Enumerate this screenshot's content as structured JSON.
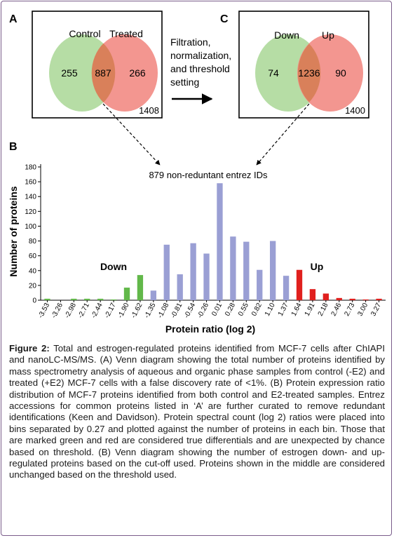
{
  "panel_a": {
    "letter": "A",
    "left_label": "Control",
    "right_label": "Treated",
    "left_only": "255",
    "overlap": "887",
    "right_only": "266",
    "total": "1408"
  },
  "arrow_text": [
    "Filtration,",
    "normalization,",
    "and threshold",
    "setting"
  ],
  "panel_c": {
    "letter": "C",
    "left_label": "Down",
    "right_label": "Up",
    "left_only": "74",
    "overlap": "1236",
    "right_only": "90",
    "total": "1400"
  },
  "panel_b_letter": "B",
  "annotation": "879 non-reduntant entrez IDs",
  "down_label": "Down",
  "up_label": "Up",
  "colors": {
    "green": "#62b84a",
    "blue": "#9a9fd4",
    "red": "#e0201e",
    "venn_green": "#b2dba0",
    "venn_red": "#f2908a",
    "venn_overlap": "#d9805a"
  },
  "chart_data": {
    "type": "bar",
    "xlabel": "Protein ratio (log 2)",
    "ylabel": "Number of proteins",
    "ylim": [
      0,
      180
    ],
    "yticks": [
      0,
      20,
      40,
      60,
      80,
      100,
      120,
      140,
      160,
      180
    ],
    "categories": [
      "-3.53",
      "-3.26",
      "-2.98",
      "-2.71",
      "-2.44",
      "-2.17",
      "-1.90",
      "-1.62",
      "-1.35",
      "-1.08",
      "-0.81",
      "-0.54",
      "-0.26",
      "0.01",
      "0.28",
      "0.55",
      "0.82",
      "1.10",
      "1.37",
      "1.64",
      "1.91",
      "2.18",
      "2.46",
      "2.73",
      "3.00",
      "3.27"
    ],
    "values": [
      2,
      0,
      2,
      2,
      2,
      1,
      17,
      34,
      13,
      75,
      35,
      77,
      63,
      158,
      86,
      79,
      41,
      80,
      33,
      41,
      15,
      9,
      3,
      2,
      1,
      2
    ],
    "bar_colors": [
      "green",
      "green",
      "green",
      "green",
      "green",
      "green",
      "green",
      "green",
      "blue",
      "blue",
      "blue",
      "blue",
      "blue",
      "blue",
      "blue",
      "blue",
      "blue",
      "blue",
      "blue",
      "red",
      "red",
      "red",
      "red",
      "red",
      "red",
      "red"
    ],
    "grid": false
  },
  "caption": {
    "label": "Figure 2:",
    "text": " Total and estrogen-regulated proteins identified from MCF-7 cells after ChIAPI and nanoLC-MS/MS. (A) Venn diagram showing the total number of proteins identified by mass spectrometry analysis of aqueous and organic phase samples from control (-E2) and treated (+E2) MCF-7 cells with a false discovery rate of <1%. (B) Protein expression ratio distribution of MCF-7 proteins identified from both control and E2-treated samples. Entrez accessions for common proteins listed in ‘A’ are further curated to remove redundant identifications (Keen and Davidson). Protein spectral count (log 2) ratios were placed into bins separated by 0.27 and plotted against the number of proteins in each bin. Those that are marked green and red are considered true differentials and are unexpected by chance based on threshold. (B) Venn diagram showing the number of estrogen down- and up-regulated proteins based on the cut-off used. Proteins shown in the middle are considered unchanged based on the threshold used."
  }
}
